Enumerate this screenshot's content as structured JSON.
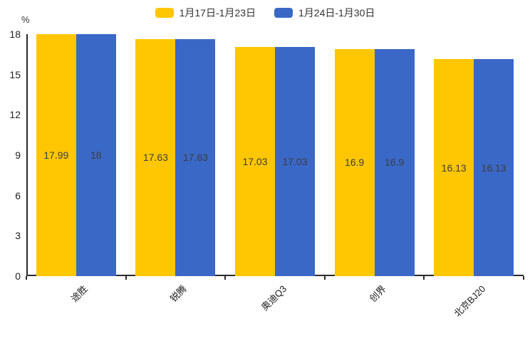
{
  "chart_data": {
    "type": "bar",
    "title": "",
    "ylabel": "%",
    "categories": [
      "途胜",
      "锐腾",
      "奥迪Q3",
      "创界",
      "北京BJ20"
    ],
    "series": [
      {
        "name": "1月17日-1月23日",
        "color": "#FFC601",
        "values": [
          17.99,
          17.63,
          17.03,
          16.9,
          16.13
        ]
      },
      {
        "name": "1月24日-1月30日",
        "color": "#3A68C7",
        "values": [
          18,
          17.63,
          17.03,
          16.9,
          16.13
        ]
      }
    ],
    "yticks": [
      0,
      3,
      6,
      9,
      12,
      15,
      18
    ],
    "ylim": [
      0,
      18
    ],
    "legend_position": "top",
    "grid": false,
    "value_labels_inside_bars": true,
    "axis_color": "#2b2b2b"
  }
}
